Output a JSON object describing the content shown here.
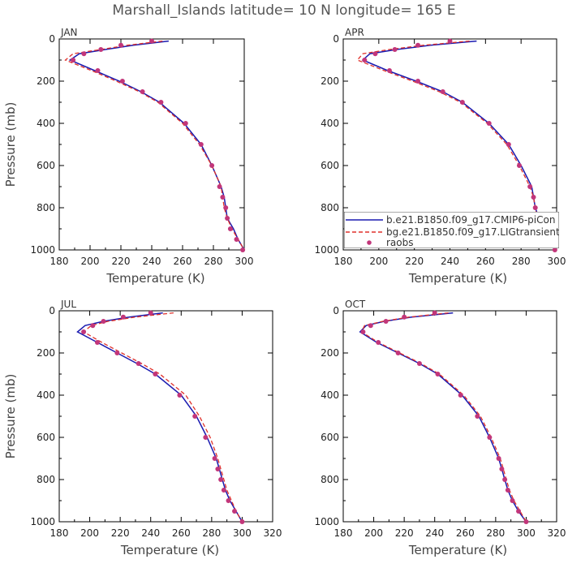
{
  "title": "Marshall_Islands  latitude= 10 N longitude= 165 E",
  "legend": {
    "entries": [
      {
        "label": "b.e21.B1850.f09_g17.CMIP6-piCon",
        "color": "#1a1ab0",
        "style": "solid"
      },
      {
        "label": "bg.e21.B1850.f09_g17.LIGtransient",
        "color": "#e0302a",
        "style": "dashed"
      },
      {
        "label": "raobs",
        "color": "#c2367a",
        "style": "dots"
      }
    ]
  },
  "chart_data": [
    {
      "type": "line",
      "panel": "JAN",
      "xlabel": "Temperature (K)",
      "ylabel": "Pressure (mb)",
      "xlim": [
        180,
        300
      ],
      "ylim": [
        1000,
        0
      ],
      "xticks": [
        180,
        200,
        220,
        240,
        260,
        280,
        300
      ],
      "yticks": [
        0,
        200,
        400,
        600,
        800,
        1000
      ],
      "pressure": [
        10,
        30,
        50,
        70,
        100,
        150,
        200,
        250,
        300,
        400,
        500,
        600,
        700,
        750,
        800,
        850,
        900,
        950,
        1000
      ],
      "series": [
        {
          "name": "b.e21.B1850.f09_g17.CMIP6-piCon",
          "values": [
            251,
            228,
            210,
            193,
            187,
            203,
            219,
            233,
            245,
            261,
            272,
            279,
            285,
            287,
            288,
            289,
            293,
            296,
            300
          ]
        },
        {
          "name": "bg.e21.B1850.f09_g17.LIGtransient",
          "values": [
            247,
            224,
            207,
            189,
            184,
            201,
            217,
            232,
            244,
            260,
            271,
            279,
            285,
            286,
            287,
            289,
            292,
            296,
            300
          ]
        },
        {
          "name": "raobs",
          "values": [
            240,
            220,
            207,
            196,
            189,
            205,
            221,
            234,
            246,
            262,
            272,
            279,
            284,
            286,
            288,
            289,
            291,
            295,
            299
          ]
        }
      ]
    },
    {
      "type": "line",
      "panel": "APR",
      "xlabel": "Temperature (K)",
      "ylabel": "",
      "xlim": [
        180,
        300
      ],
      "ylim": [
        1000,
        0
      ],
      "xticks": [
        180,
        200,
        220,
        240,
        260,
        280,
        300
      ],
      "yticks": [
        0,
        200,
        400,
        600,
        800,
        1000
      ],
      "pressure": [
        10,
        30,
        50,
        70,
        100,
        150,
        200,
        250,
        300,
        400,
        500,
        600,
        700,
        750,
        800,
        850,
        900,
        950,
        1000
      ],
      "series": [
        {
          "name": "b.e21.B1850.f09_g17.CMIP6-piCon",
          "values": [
            255,
            229,
            210,
            195,
            191,
            205,
            221,
            236,
            247,
            262,
            273,
            280,
            286,
            287,
            288,
            290,
            293,
            296,
            300
          ]
        },
        {
          "name": "bg.e21.B1850.f09_g17.LIGtransient",
          "values": [
            251,
            225,
            206,
            191,
            188,
            203,
            219,
            234,
            246,
            261,
            272,
            279,
            285,
            287,
            288,
            289,
            292,
            296,
            300
          ]
        },
        {
          "name": "raobs",
          "values": [
            240,
            222,
            209,
            198,
            192,
            206,
            222,
            236,
            247,
            262,
            273,
            279,
            285,
            287,
            288,
            289,
            292,
            295,
            299
          ]
        }
      ]
    },
    {
      "type": "line",
      "panel": "JUL",
      "xlabel": "Temperature (K)",
      "ylabel": "Pressure (mb)",
      "xlim": [
        180,
        320
      ],
      "ylim": [
        1000,
        0
      ],
      "xticks": [
        180,
        200,
        220,
        240,
        260,
        280,
        300,
        320
      ],
      "yticks": [
        0,
        200,
        400,
        600,
        800,
        1000
      ],
      "pressure": [
        10,
        30,
        50,
        70,
        100,
        150,
        200,
        250,
        300,
        400,
        500,
        600,
        700,
        750,
        800,
        850,
        900,
        950,
        1000
      ],
      "series": [
        {
          "name": "b.e21.B1850.f09_g17.CMIP6-piCon",
          "values": [
            248,
            226,
            209,
            197,
            192,
            205,
            218,
            231,
            243,
            260,
            270,
            277,
            283,
            285,
            287,
            289,
            292,
            296,
            300
          ]
        },
        {
          "name": "bg.e21.B1850.f09_g17.LIGtransient",
          "values": [
            255,
            230,
            212,
            201,
            196,
            208,
            221,
            234,
            246,
            263,
            272,
            279,
            284,
            286,
            288,
            290,
            293,
            296,
            300
          ]
        },
        {
          "name": "raobs",
          "values": [
            240,
            222,
            209,
            202,
            196,
            205,
            218,
            232,
            243,
            259,
            269,
            276,
            282,
            284,
            286,
            288,
            291,
            295,
            300
          ]
        }
      ]
    },
    {
      "type": "line",
      "panel": "OCT",
      "xlabel": "Temperature (K)",
      "ylabel": "",
      "xlim": [
        180,
        320
      ],
      "ylim": [
        1000,
        0
      ],
      "xticks": [
        180,
        200,
        220,
        240,
        260,
        280,
        300,
        320
      ],
      "yticks": [
        0,
        200,
        400,
        600,
        800,
        1000
      ],
      "pressure": [
        10,
        30,
        50,
        70,
        100,
        150,
        200,
        250,
        300,
        400,
        500,
        600,
        700,
        750,
        800,
        850,
        900,
        950,
        1000
      ],
      "series": [
        {
          "name": "b.e21.B1850.f09_g17.CMIP6-piCon",
          "values": [
            252,
            225,
            207,
            195,
            191,
            202,
            216,
            230,
            242,
            258,
            269,
            276,
            282,
            284,
            286,
            288,
            291,
            295,
            300
          ]
        },
        {
          "name": "bg.e21.B1850.f09_g17.LIGtransient",
          "values": [
            249,
            223,
            206,
            194,
            192,
            203,
            217,
            231,
            243,
            259,
            270,
            277,
            283,
            285,
            287,
            289,
            292,
            296,
            300
          ]
        },
        {
          "name": "raobs",
          "values": [
            240,
            220,
            208,
            198,
            193,
            203,
            216,
            230,
            242,
            257,
            268,
            276,
            282,
            284,
            286,
            288,
            291,
            295,
            300
          ]
        }
      ]
    }
  ]
}
